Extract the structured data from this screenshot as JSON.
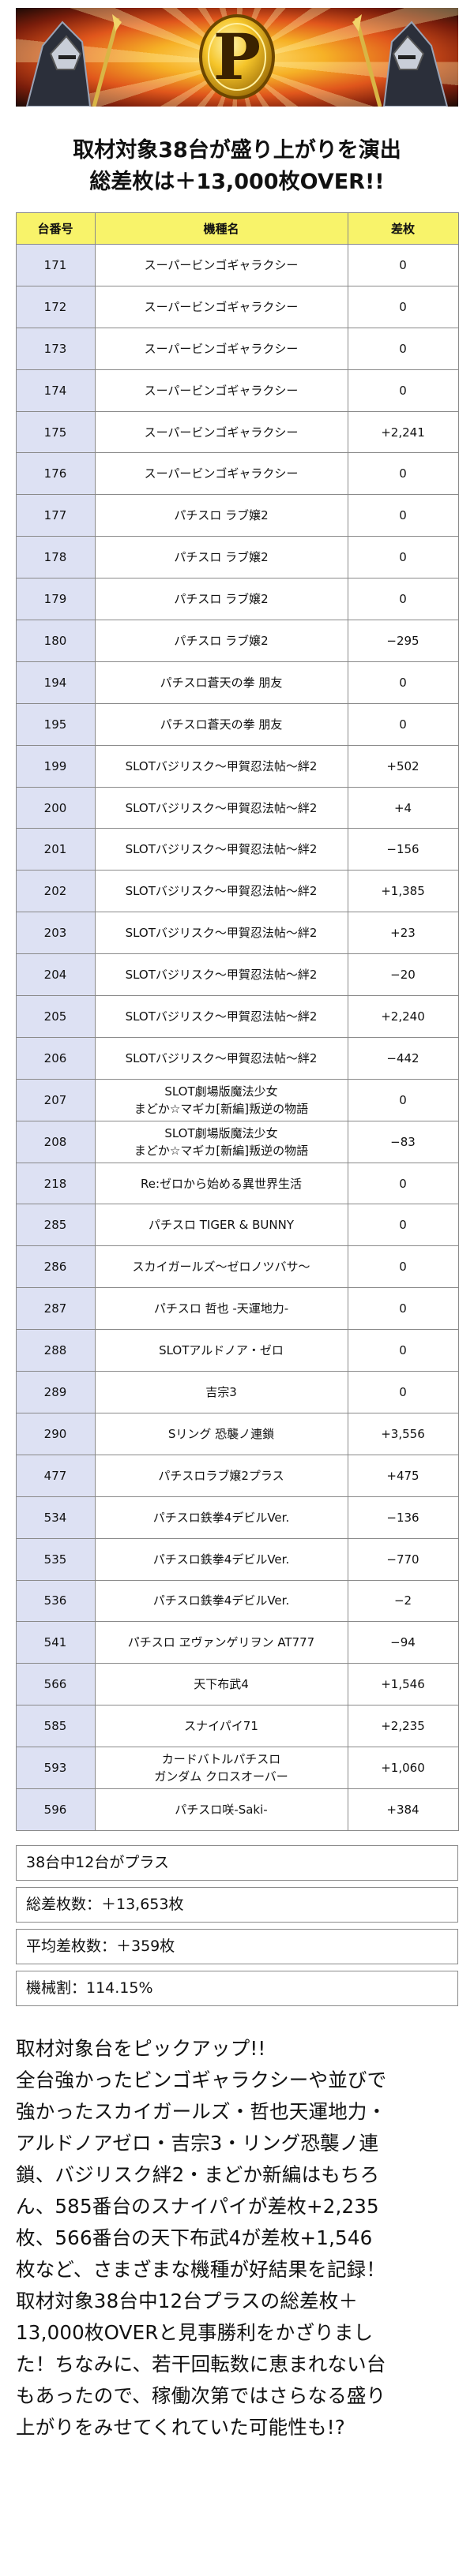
{
  "headline_line1": "取材対象38台が盛り上がりを演出",
  "headline_line2": "総差枚は＋13,000枚OVER!!",
  "banner": {
    "letter": "P"
  },
  "table": {
    "headers": [
      "台番号",
      "機種名",
      "差枚"
    ],
    "rows": [
      {
        "num": "171",
        "name": "スーパービンゴギャラクシー",
        "diff": "0"
      },
      {
        "num": "172",
        "name": "スーパービンゴギャラクシー",
        "diff": "0"
      },
      {
        "num": "173",
        "name": "スーパービンゴギャラクシー",
        "diff": "0"
      },
      {
        "num": "174",
        "name": "スーパービンゴギャラクシー",
        "diff": "0"
      },
      {
        "num": "175",
        "name": "スーパービンゴギャラクシー",
        "diff": "+2,241"
      },
      {
        "num": "176",
        "name": "スーパービンゴギャラクシー",
        "diff": "0"
      },
      {
        "num": "177",
        "name": "パチスロ ラブ嬢2",
        "diff": "0"
      },
      {
        "num": "178",
        "name": "パチスロ ラブ嬢2",
        "diff": "0"
      },
      {
        "num": "179",
        "name": "パチスロ ラブ嬢2",
        "diff": "0"
      },
      {
        "num": "180",
        "name": "パチスロ ラブ嬢2",
        "diff": "−295"
      },
      {
        "num": "194",
        "name": "パチスロ蒼天の拳 朋友",
        "diff": "0"
      },
      {
        "num": "195",
        "name": "パチスロ蒼天の拳 朋友",
        "diff": "0"
      },
      {
        "num": "199",
        "name": "SLOTバジリスク～甲賀忍法帖～絆2",
        "diff": "+502"
      },
      {
        "num": "200",
        "name": "SLOTバジリスク～甲賀忍法帖～絆2",
        "diff": "+4"
      },
      {
        "num": "201",
        "name": "SLOTバジリスク～甲賀忍法帖～絆2",
        "diff": "−156"
      },
      {
        "num": "202",
        "name": "SLOTバジリスク～甲賀忍法帖～絆2",
        "diff": "+1,385"
      },
      {
        "num": "203",
        "name": "SLOTバジリスク～甲賀忍法帖～絆2",
        "diff": "+23"
      },
      {
        "num": "204",
        "name": "SLOTバジリスク～甲賀忍法帖～絆2",
        "diff": "−20"
      },
      {
        "num": "205",
        "name": "SLOTバジリスク～甲賀忍法帖～絆2",
        "diff": "+2,240"
      },
      {
        "num": "206",
        "name": "SLOTバジリスク～甲賀忍法帖～絆2",
        "diff": "−442"
      },
      {
        "num": "207",
        "name": "SLOT劇場版魔法少女\nまどか☆マギカ[新編]叛逆の物語",
        "diff": "0"
      },
      {
        "num": "208",
        "name": "SLOT劇場版魔法少女\nまどか☆マギカ[新編]叛逆の物語",
        "diff": "−83"
      },
      {
        "num": "218",
        "name": "Re:ゼロから始める異世界生活",
        "diff": "0"
      },
      {
        "num": "285",
        "name": "パチスロ TIGER & BUNNY",
        "diff": "0"
      },
      {
        "num": "286",
        "name": "スカイガールズ～ゼロノツバサ～",
        "diff": "0"
      },
      {
        "num": "287",
        "name": "パチスロ 哲也 -天運地力-",
        "diff": "0"
      },
      {
        "num": "288",
        "name": "SLOTアルドノア・ゼロ",
        "diff": "0"
      },
      {
        "num": "289",
        "name": "吉宗3",
        "diff": "0"
      },
      {
        "num": "290",
        "name": "Sリング 恐襲ノ連鎖",
        "diff": "+3,556"
      },
      {
        "num": "477",
        "name": "パチスロラブ嬢2プラス",
        "diff": "+475"
      },
      {
        "num": "534",
        "name": "パチスロ鉄拳4デビルVer.",
        "diff": "−136"
      },
      {
        "num": "535",
        "name": "パチスロ鉄拳4デビルVer.",
        "diff": "−770"
      },
      {
        "num": "536",
        "name": "パチスロ鉄拳4デビルVer.",
        "diff": "−2"
      },
      {
        "num": "541",
        "name": "パチスロ ヱヴァンゲリヲン AT777",
        "diff": "−94"
      },
      {
        "num": "566",
        "name": "天下布武4",
        "diff": "+1,546"
      },
      {
        "num": "585",
        "name": "スナイパイ71",
        "diff": "+2,235"
      },
      {
        "num": "593",
        "name": "カードバトルパチスロ\nガンダム クロスオーバー",
        "diff": "+1,060"
      },
      {
        "num": "596",
        "name": "パチスロ咲-Saki-",
        "diff": "+384"
      }
    ]
  },
  "summary": {
    "plus_count": "38台中12台がプラス",
    "total_diff": "総差枚数：＋13,653枚",
    "avg_diff": "平均差枚数：＋359枚",
    "payout_rate": "機械割：114.15%"
  },
  "article": [
    "取材対象台をピックアップ!!",
    "全台強かったビンゴギャラクシーや並びで",
    "強かったスカイガールズ・哲也天運地力・",
    "アルドノアゼロ・吉宗3・リング恐襲ノ連",
    "鎖、バジリスク絆2・まどか新編はもちろ",
    "ん、585番台のスナイパイが差枚+2,235",
    "枚、566番台の天下布武4が差枚+1,546",
    "枚など、さまざまな機種が好結果を記録！",
    "取材対象38台中12台プラスの総差枚＋",
    "13,000枚OVERと見事勝利をかざりまし",
    "た！ちなみに、若干回転数に恵まれない台",
    "もあったので、稼働次第ではさらなる盛り",
    "上がりをみせてくれていた可能性も!?"
  ]
}
